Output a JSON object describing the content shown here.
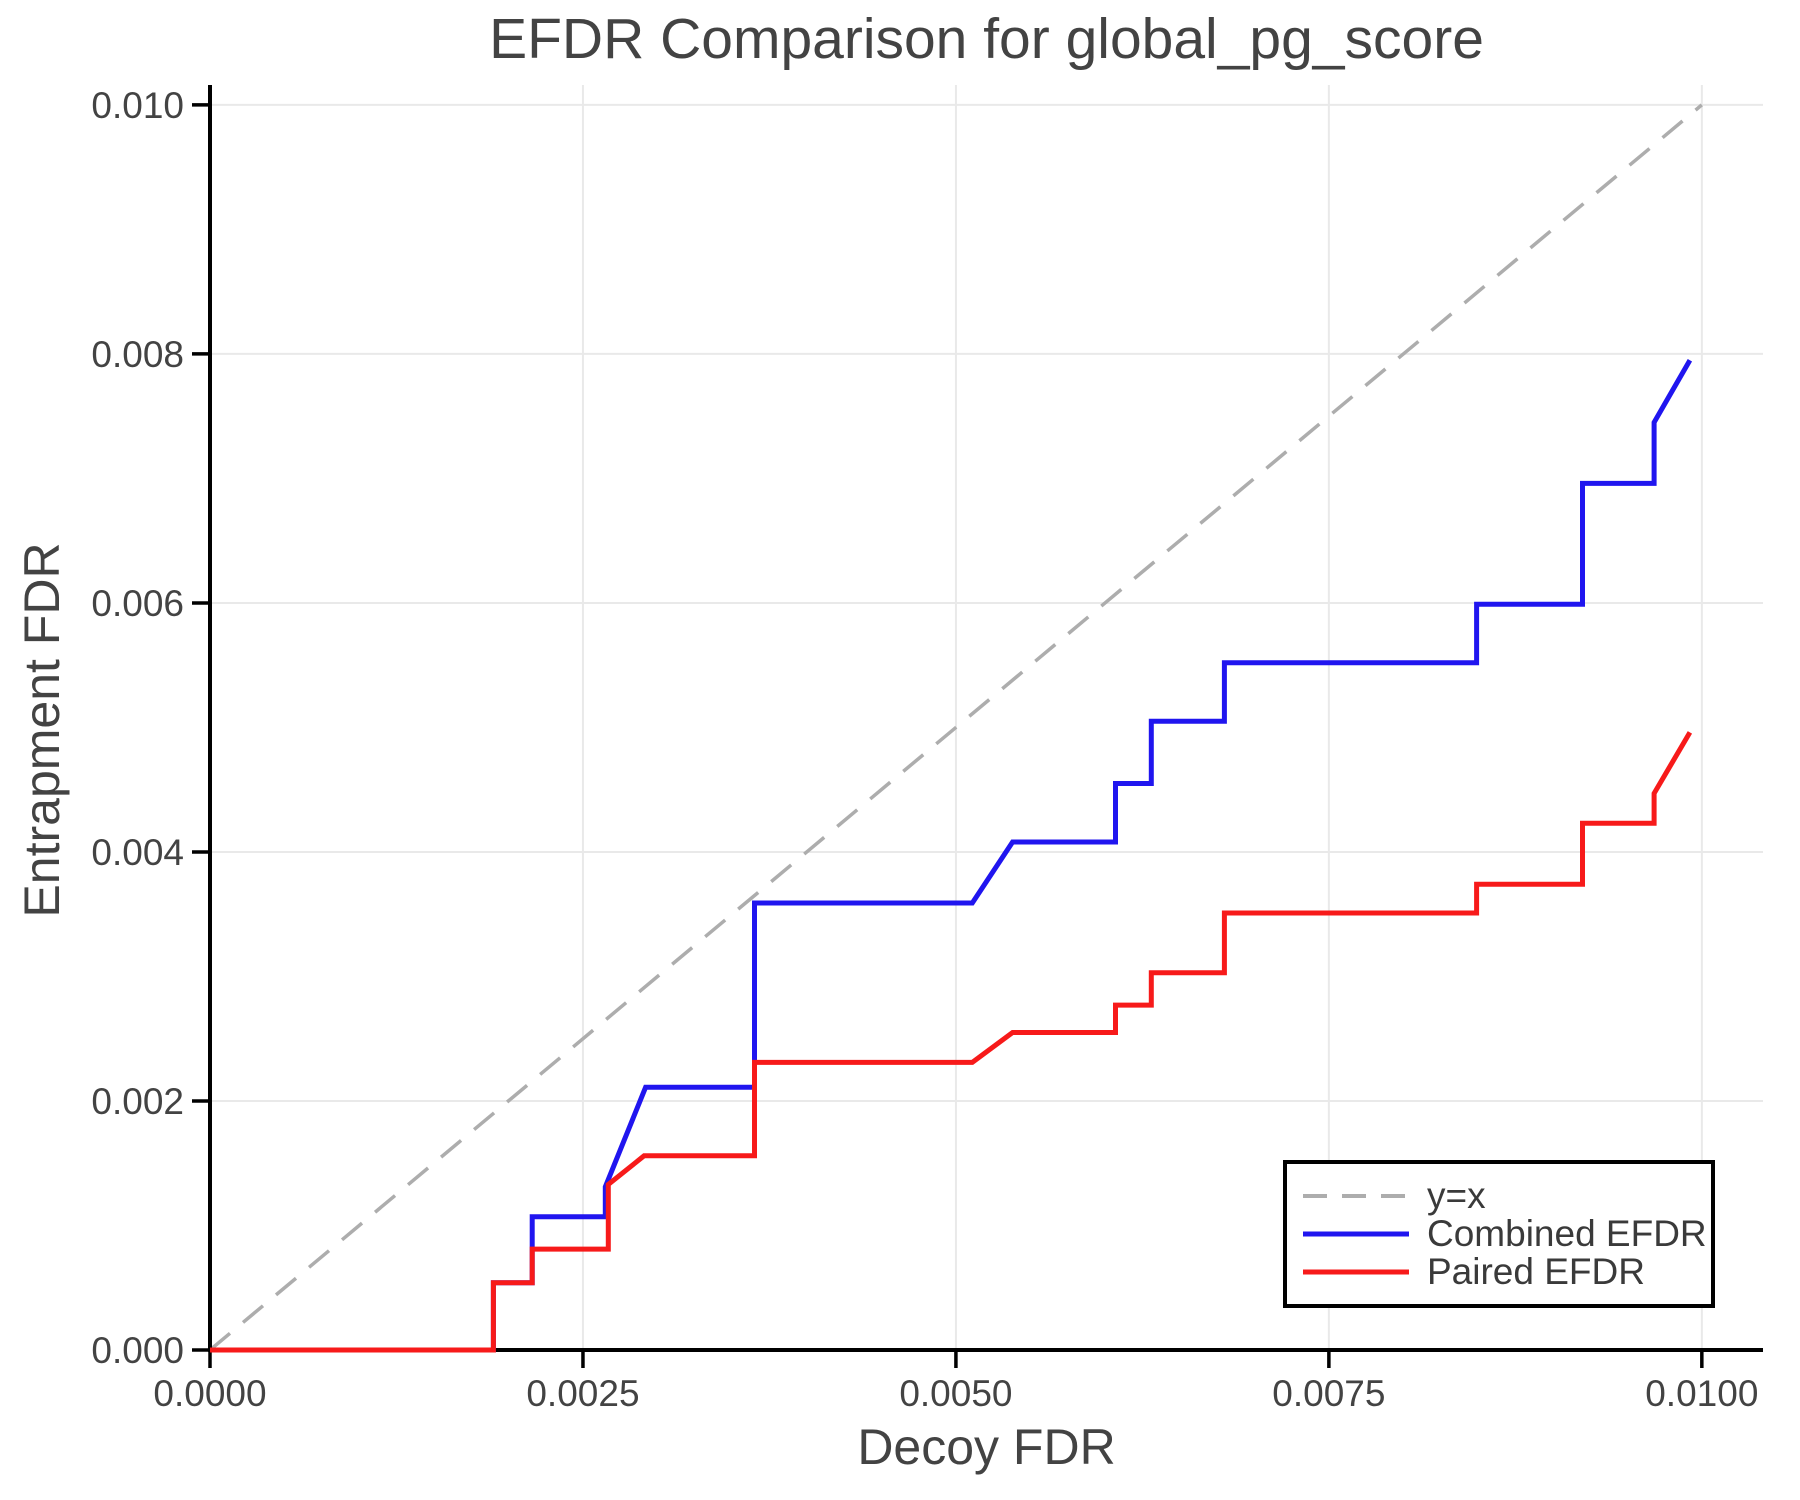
{
  "chart_data": {
    "type": "line",
    "title": "EFDR Comparison for global_pg_score",
    "xlabel": "Decoy FDR",
    "ylabel": "Entrapment FDR",
    "xlim": [
      0,
      0.01041
    ],
    "ylim": [
      0,
      0.01016
    ],
    "grid": true,
    "legend_position": "lower right",
    "x_ticks": {
      "values": [
        0,
        0.0025,
        0.005,
        0.0075,
        0.01
      ],
      "labels": [
        "0.0000",
        "0.0025",
        "0.0050",
        "0.0075",
        "0.0100"
      ]
    },
    "y_ticks": {
      "values": [
        0,
        0.002,
        0.004,
        0.006,
        0.008,
        0.01
      ],
      "labels": [
        "0.000",
        "0.002",
        "0.004",
        "0.006",
        "0.008",
        "0.010"
      ]
    },
    "colors": {
      "identity": "#adadad",
      "combined": "#2015ef",
      "paired": "#f71a1a",
      "grid": "#e9e9e9",
      "spine": "#000000",
      "text": "#434343"
    },
    "series": [
      {
        "name": "y=x",
        "style": "dashed",
        "color": "#adadad",
        "width": 3.5,
        "points": [
          [
            0,
            0
          ],
          [
            0.01,
            0.01
          ]
        ]
      },
      {
        "name": "Combined EFDR",
        "style": "solid",
        "color": "#2015ef",
        "width": 5,
        "points": [
          [
            0,
            0
          ],
          [
            0.0019,
            0
          ],
          [
            0.0019,
            0.00054
          ],
          [
            0.00216,
            0.00054
          ],
          [
            0.00216,
            0.00107
          ],
          [
            0.00265,
            0.00107
          ],
          [
            0.00265,
            0.00131
          ],
          [
            0.00292,
            0.00211
          ],
          [
            0.00365,
            0.00211
          ],
          [
            0.00365,
            0.00359
          ],
          [
            0.00511,
            0.00359
          ],
          [
            0.00538,
            0.00408
          ],
          [
            0.00607,
            0.00408
          ],
          [
            0.00607,
            0.00455
          ],
          [
            0.00631,
            0.00455
          ],
          [
            0.00631,
            0.00505
          ],
          [
            0.0068,
            0.00505
          ],
          [
            0.0068,
            0.00552
          ],
          [
            0.00849,
            0.00552
          ],
          [
            0.00849,
            0.00599
          ],
          [
            0.0092,
            0.00599
          ],
          [
            0.0092,
            0.00696
          ],
          [
            0.00968,
            0.00696
          ],
          [
            0.00968,
            0.00745
          ],
          [
            0.00992,
            0.00795
          ]
        ]
      },
      {
        "name": "Paired EFDR",
        "style": "solid",
        "color": "#f71a1a",
        "width": 5,
        "points": [
          [
            0,
            0
          ],
          [
            0.0019,
            0
          ],
          [
            0.0019,
            0.00054
          ],
          [
            0.00216,
            0.00054
          ],
          [
            0.00216,
            0.00081
          ],
          [
            0.00267,
            0.00081
          ],
          [
            0.00267,
            0.00133
          ],
          [
            0.00291,
            0.00156
          ],
          [
            0.00365,
            0.00156
          ],
          [
            0.00365,
            0.00231
          ],
          [
            0.00511,
            0.00231
          ],
          [
            0.00538,
            0.00255
          ],
          [
            0.00607,
            0.00255
          ],
          [
            0.00607,
            0.00277
          ],
          [
            0.00631,
            0.00277
          ],
          [
            0.00631,
            0.00303
          ],
          [
            0.0068,
            0.00303
          ],
          [
            0.0068,
            0.00351
          ],
          [
            0.00849,
            0.00351
          ],
          [
            0.00849,
            0.00374
          ],
          [
            0.0092,
            0.00374
          ],
          [
            0.0092,
            0.00423
          ],
          [
            0.00968,
            0.00423
          ],
          [
            0.00968,
            0.00447
          ],
          [
            0.00992,
            0.00496
          ]
        ]
      }
    ]
  }
}
